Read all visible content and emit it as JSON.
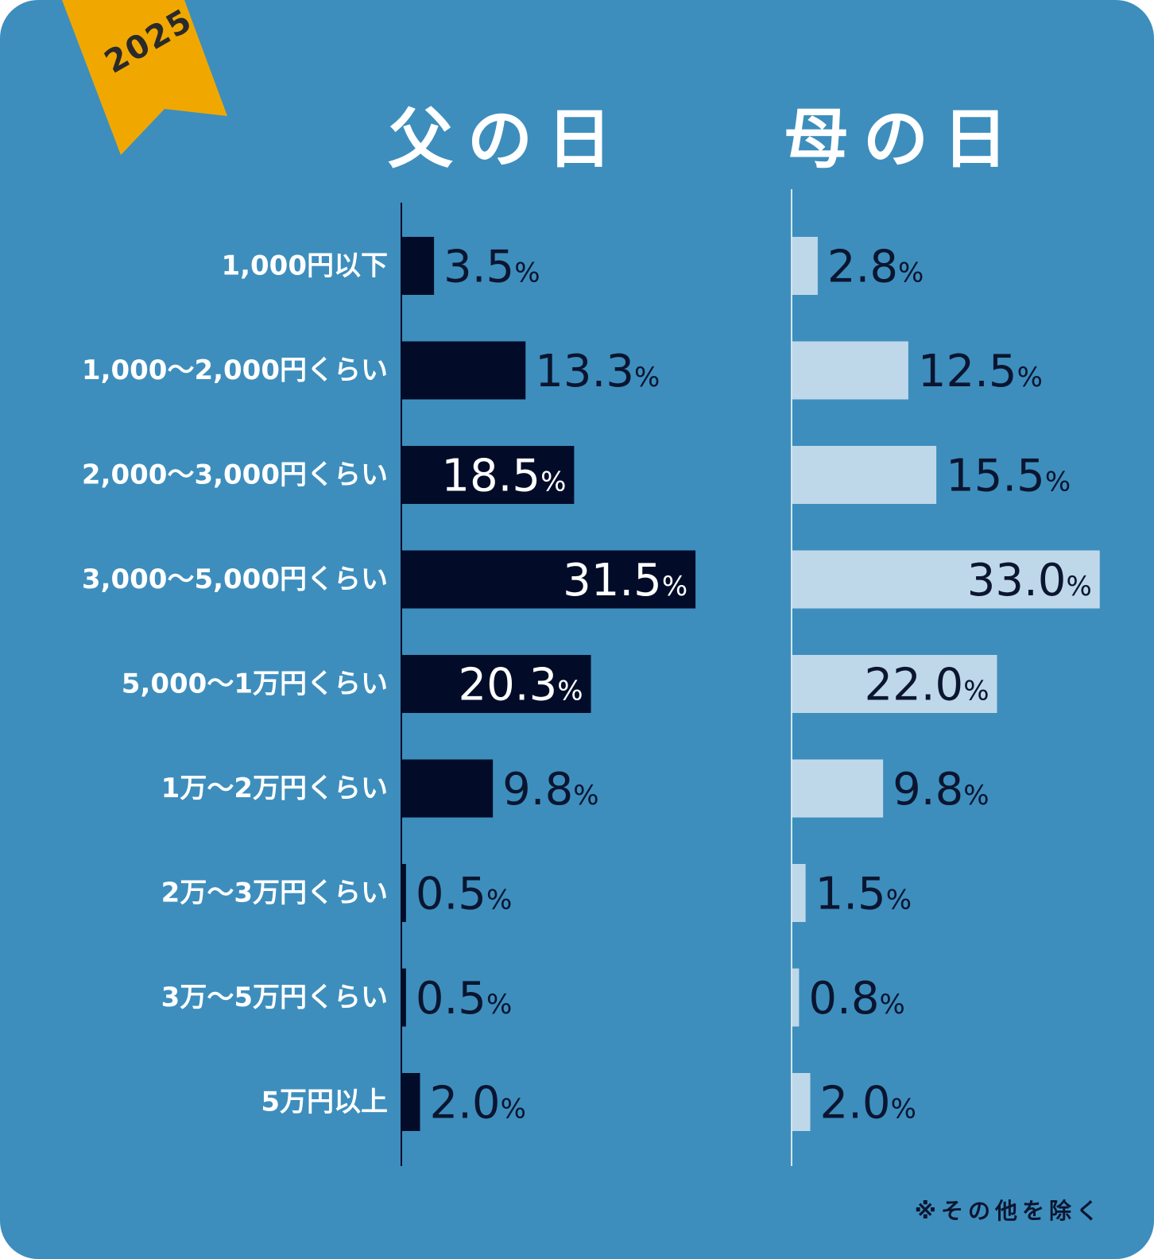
{
  "badge": {
    "year": "2025",
    "color": "#f0a800"
  },
  "colors": {
    "background": "#3d8ebd",
    "father_bar": "#020c29",
    "mother_bar": "#bed8ea",
    "dark_text": "#0b1530",
    "light_text": "#ffffff"
  },
  "footnote": "※その他を除く",
  "chart_data": {
    "type": "bar",
    "orientation": "horizontal",
    "categories": [
      "1,000円以下",
      "1,000～2,000円くらい",
      "2,000～3,000円くらい",
      "3,000～5,000円くらい",
      "5,000～1万円くらい",
      "1万～2万円くらい",
      "2万～3万円くらい",
      "3万～5万円くらい",
      "5万円以上"
    ],
    "series": [
      {
        "name": "父の日",
        "values": [
          3.5,
          13.3,
          18.5,
          31.5,
          20.3,
          9.8,
          0.5,
          0.5,
          2.0
        ],
        "labels": [
          "3.5",
          "13.3",
          "18.5",
          "31.5",
          "20.3",
          "9.8",
          "0.5",
          "0.5",
          "2.0"
        ]
      },
      {
        "name": "母の日",
        "values": [
          2.8,
          12.5,
          15.5,
          33.0,
          22.0,
          9.8,
          1.5,
          0.8,
          2.0
        ],
        "labels": [
          "2.8",
          "12.5",
          "15.5",
          "33.0",
          "22.0",
          "9.8",
          "1.5",
          "0.8",
          "2.0"
        ]
      }
    ],
    "unit": "%",
    "legend": "none",
    "grid": false
  }
}
